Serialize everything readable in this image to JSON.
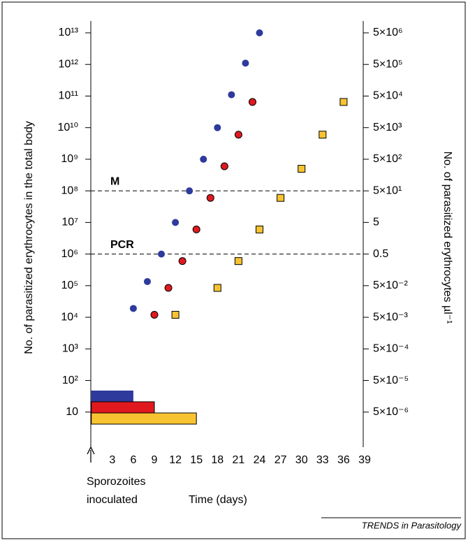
{
  "chart_data": {
    "type": "scatter",
    "ylabel": "No. of parasitized erythrocytes in the total body",
    "y2label": "No. of parasitized erythrocytes µl⁻¹",
    "xlabel": "Time (days)",
    "annotation": [
      "Sporozoites",
      "inoculated"
    ],
    "source": "TRENDS in Parasitology",
    "ylog": true,
    "xlim": [
      0,
      39
    ],
    "xticks": [
      3,
      6,
      9,
      12,
      15,
      18,
      21,
      24,
      27,
      30,
      33,
      36,
      39
    ],
    "ylim": [
      1,
      10000000000000
    ],
    "yticks": [
      {
        "value": 10,
        "label": "10"
      },
      {
        "value": 100,
        "label": "10²"
      },
      {
        "value": 1000,
        "label": "10³"
      },
      {
        "value": 10000,
        "label": "10⁴"
      },
      {
        "value": 100000,
        "label": "10⁵"
      },
      {
        "value": 1000000,
        "label": "10⁶"
      },
      {
        "value": 10000000,
        "label": "10⁷"
      },
      {
        "value": 100000000,
        "label": "10⁸"
      },
      {
        "value": 1000000000,
        "label": "10⁹"
      },
      {
        "value": 10000000000,
        "label": "10¹⁰"
      },
      {
        "value": 100000000000,
        "label": "10¹¹"
      },
      {
        "value": 1000000000000,
        "label": "10¹²"
      },
      {
        "value": 10000000000000,
        "label": "10¹³"
      }
    ],
    "y2lim": [
      5e-07,
      5000000
    ],
    "y2ticks": [
      {
        "value": 5e-06,
        "label": "5×10⁻⁶"
      },
      {
        "value": 5e-05,
        "label": "5×10⁻⁵"
      },
      {
        "value": 0.0005,
        "label": "5×10⁻⁴"
      },
      {
        "value": 0.005,
        "label": "5×10⁻³"
      },
      {
        "value": 0.05,
        "label": "5×10⁻²"
      },
      {
        "value": 0.5,
        "label": "0.5"
      },
      {
        "value": 5,
        "label": "5"
      },
      {
        "value": 50,
        "label": "5×10¹"
      },
      {
        "value": 500,
        "label": "5×10²"
      },
      {
        "value": 5000,
        "label": "5×10³"
      },
      {
        "value": 50000,
        "label": "5×10⁴"
      },
      {
        "value": 500000,
        "label": "5×10⁵"
      },
      {
        "value": 5000000,
        "label": "5×10⁶"
      }
    ],
    "reference_lines": [
      {
        "label": "M",
        "value": 100000000
      },
      {
        "label": "PCR",
        "value": 1000000
      }
    ],
    "series": [
      {
        "color": "#2e3a9c",
        "marker": "circle",
        "x": [
          6,
          8,
          10,
          12,
          14,
          16,
          18,
          20,
          22,
          24
        ],
        "values": [
          19000,
          135000,
          1000000,
          10000000,
          100000000,
          1000000000,
          10000000000,
          110000000000,
          1100000000000,
          10000000000000
        ],
        "duration": 6
      },
      {
        "color": "#e0191e",
        "marker": "circle",
        "x": [
          9,
          11,
          13,
          15,
          17,
          19,
          21,
          23
        ],
        "values": [
          12000,
          85000,
          600000,
          6000000,
          60000000,
          600000000,
          6000000000,
          65000000000
        ],
        "duration": 9
      },
      {
        "color": "#f7c331",
        "marker": "square",
        "x": [
          12,
          18,
          21,
          24,
          27,
          30,
          33,
          36
        ],
        "values": [
          12000,
          85000,
          600000,
          6000000,
          60000000,
          500000000,
          6000000000,
          65000000000
        ],
        "duration": 15
      }
    ]
  }
}
